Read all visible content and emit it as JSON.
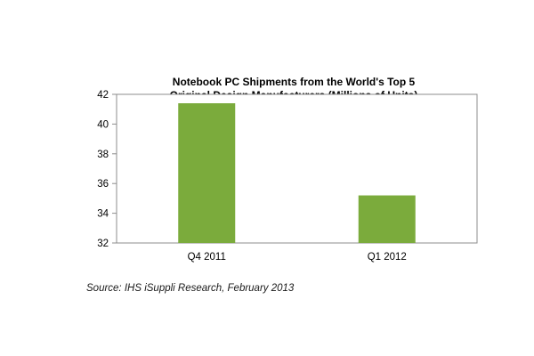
{
  "chart_data": {
    "type": "bar",
    "title": [
      "Notebook PC Shipments from the World's Top 5",
      "Original Design Manufacturers (Millions of Units)"
    ],
    "xlabel": "",
    "ylabel": "",
    "categories": [
      "Q4 2011",
      "Q1 2012"
    ],
    "values": [
      41.4,
      35.2
    ],
    "ylim": [
      32,
      42
    ],
    "yticks": [
      32,
      34,
      36,
      38,
      40,
      42
    ],
    "bar_color": "#7bab3c",
    "grid": false,
    "legend": "none"
  },
  "source_note": "Source: IHS iSuppli Research, February 2013"
}
